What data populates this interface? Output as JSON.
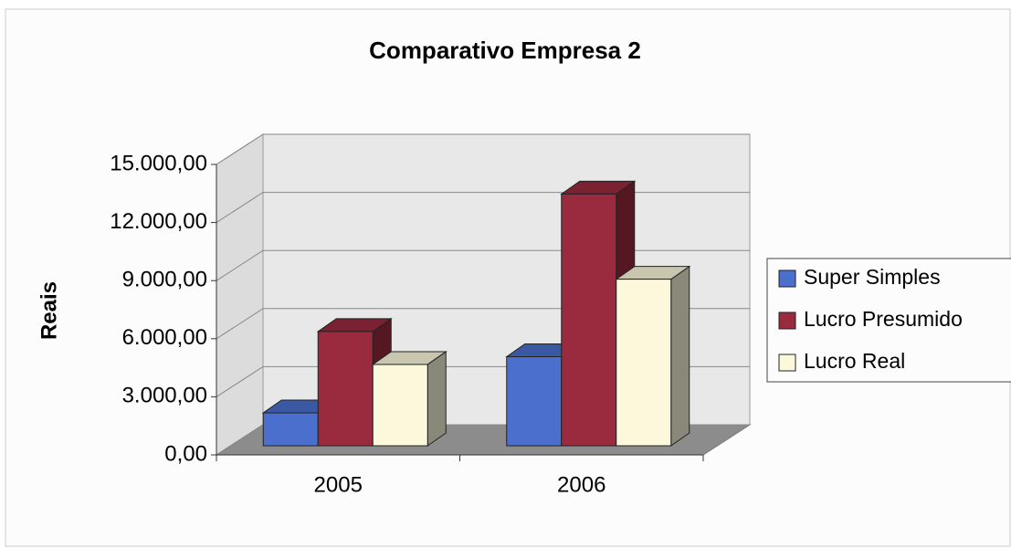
{
  "chart_data": {
    "type": "bar3d",
    "title": "Comparativo Empresa 2",
    "y_label": "Reais",
    "categories": [
      "2005",
      "2006"
    ],
    "series": [
      {
        "name": "Super Simples",
        "color": "#4a6fcc",
        "values": [
          1700,
          4600
        ]
      },
      {
        "name": "Lucro Presumido",
        "color": "#9a2b3f",
        "values": [
          5900,
          13000
        ]
      },
      {
        "name": "Lucro Real",
        "color": "#fbf8dc",
        "values": [
          4200,
          8600
        ]
      }
    ],
    "ylim": [
      0,
      15000
    ],
    "yticks": [
      {
        "value": 0,
        "label": "0,00"
      },
      {
        "value": 3000,
        "label": "3.000,00"
      },
      {
        "value": 6000,
        "label": "6.000,00"
      },
      {
        "value": 9000,
        "label": "9.000,00"
      },
      {
        "value": 12000,
        "label": "12.000,00"
      },
      {
        "value": 15000,
        "label": "15.000,00"
      }
    ],
    "grid": true,
    "legend": "right"
  }
}
